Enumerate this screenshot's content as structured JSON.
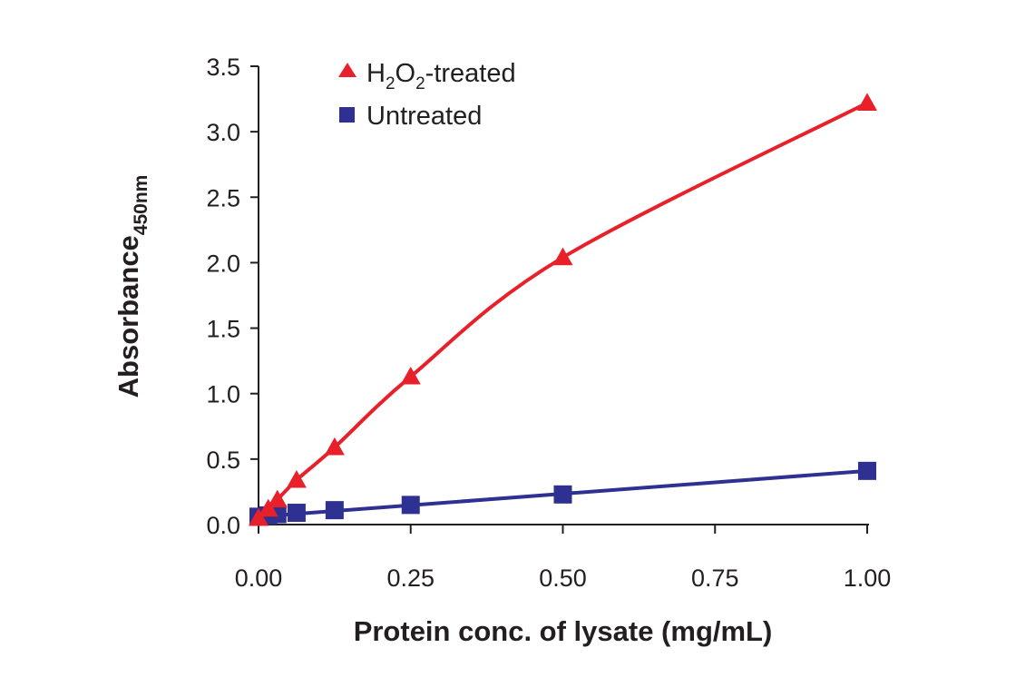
{
  "chart_data": {
    "type": "line",
    "title": "",
    "xlabel": "Protein conc. of lysate (mg/mL)",
    "ylabel": "Absorbance",
    "ylabel_subscript": "450nm",
    "xlim": [
      0,
      1.0
    ],
    "ylim": [
      0,
      3.5
    ],
    "x_ticks": [
      "0.00",
      "0.25",
      "0.50",
      "0.75",
      "1.00"
    ],
    "y_ticks": [
      "0.0",
      "0.5",
      "1.0",
      "1.5",
      "2.0",
      "2.5",
      "3.0",
      "3.5"
    ],
    "grid": false,
    "legend_position": "top-left",
    "series": [
      {
        "name": "H2O2-treated",
        "legend_parts": [
          "H",
          "2",
          "O",
          "2",
          "-treated"
        ],
        "marker": "triangle",
        "color": "#e8202a",
        "x": [
          0.0,
          0.016,
          0.031,
          0.0625,
          0.125,
          0.25,
          0.5,
          1.0
        ],
        "y": [
          0.05,
          0.12,
          0.19,
          0.34,
          0.59,
          1.13,
          2.04,
          3.22
        ]
      },
      {
        "name": "Untreated",
        "legend_parts": [
          "Untreated"
        ],
        "marker": "square",
        "color": "#2e3192",
        "x": [
          0.0,
          0.016,
          0.031,
          0.0625,
          0.125,
          0.25,
          0.5,
          1.0
        ],
        "y": [
          0.06,
          0.07,
          0.08,
          0.09,
          0.11,
          0.15,
          0.23,
          0.41
        ]
      }
    ]
  }
}
